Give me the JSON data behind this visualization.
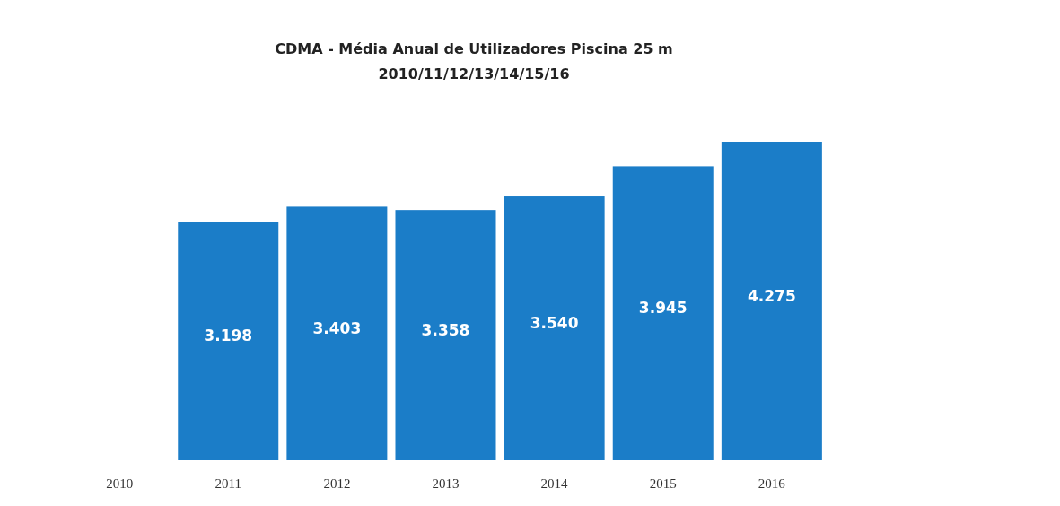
{
  "chart_data": {
    "type": "bar",
    "title": "CDMA - Média Anual de Utilizadores Piscina 25 m",
    "subtitle": "2010/11/12/13/14/15/16",
    "categories": [
      "2010",
      "2011",
      "2012",
      "2013",
      "2014",
      "2015",
      "2016"
    ],
    "values": [
      null,
      3198,
      3403,
      3358,
      3540,
      3945,
      4275
    ],
    "value_labels": [
      null,
      "3.198",
      "3.403",
      "3.358",
      "3.540",
      "3.945",
      "4.275"
    ],
    "color": "#1b7dc8"
  }
}
